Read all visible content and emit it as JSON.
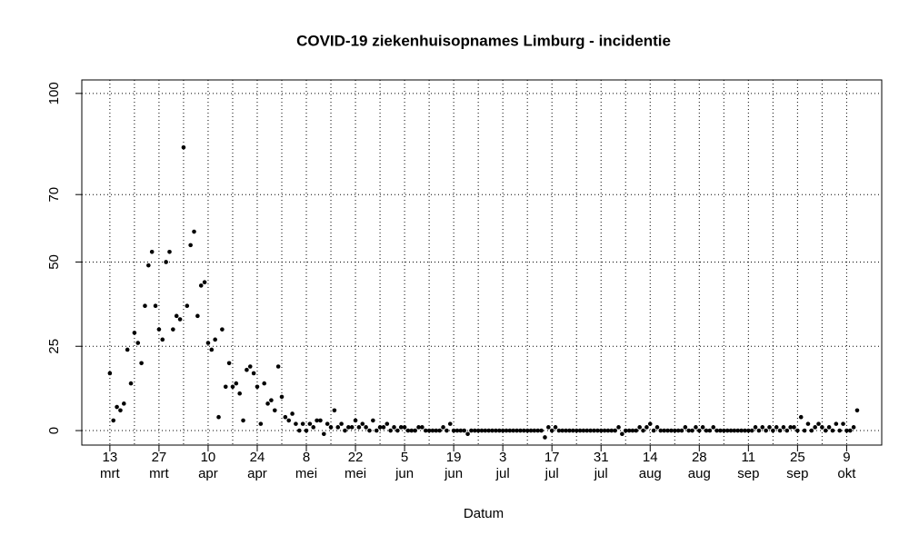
{
  "chart_data": {
    "type": "scatter",
    "title": "COVID-19 ziekenhuisopnames Limburg - incidentie",
    "xlabel": "Datum",
    "color": "#000000",
    "grid": true,
    "xlim": [
      -8,
      220
    ],
    "ylim": [
      -4.3,
      104
    ],
    "yticks": [
      0,
      25,
      50,
      70,
      100
    ],
    "xticks": [
      {
        "value": 0,
        "label": "13 mrt"
      },
      {
        "value": 14,
        "label": "27 mrt"
      },
      {
        "value": 28,
        "label": "10 apr"
      },
      {
        "value": 42,
        "label": "24 apr"
      },
      {
        "value": 56,
        "label": "8 mei"
      },
      {
        "value": 70,
        "label": "22 mei"
      },
      {
        "value": 84,
        "label": "5 jun"
      },
      {
        "value": 98,
        "label": "19 jun"
      },
      {
        "value": 112,
        "label": "3 jul"
      },
      {
        "value": 126,
        "label": "17 jul"
      },
      {
        "value": 140,
        "label": "31 jul"
      },
      {
        "value": 154,
        "label": "14 aug"
      },
      {
        "value": 168,
        "label": "28 aug"
      },
      {
        "value": 182,
        "label": "11 sep"
      },
      {
        "value": 196,
        "label": "25 sep"
      },
      {
        "value": 210,
        "label": "9 okt"
      }
    ],
    "x": [
      0,
      1,
      2,
      3,
      4,
      5,
      6,
      7,
      8,
      9,
      10,
      11,
      12,
      13,
      14,
      15,
      16,
      17,
      18,
      19,
      20,
      21,
      22,
      23,
      24,
      25,
      26,
      27,
      28,
      29,
      30,
      31,
      32,
      33,
      34,
      35,
      36,
      37,
      38,
      39,
      40,
      41,
      42,
      43,
      44,
      45,
      46,
      47,
      48,
      49,
      50,
      51,
      52,
      53,
      54,
      55,
      56,
      57,
      58,
      59,
      60,
      61,
      62,
      63,
      64,
      65,
      66,
      67,
      68,
      69,
      70,
      71,
      72,
      73,
      74,
      75,
      76,
      77,
      78,
      79,
      80,
      81,
      82,
      83,
      84,
      85,
      86,
      87,
      88,
      89,
      90,
      91,
      92,
      93,
      94,
      95,
      96,
      97,
      98,
      99,
      100,
      101,
      102,
      103,
      104,
      105,
      106,
      107,
      108,
      109,
      110,
      111,
      112,
      113,
      114,
      115,
      116,
      117,
      118,
      119,
      120,
      121,
      122,
      123,
      124,
      125,
      126,
      127,
      128,
      129,
      130,
      131,
      132,
      133,
      134,
      135,
      136,
      137,
      138,
      139,
      140,
      141,
      142,
      143,
      144,
      145,
      146,
      147,
      148,
      149,
      150,
      151,
      152,
      153,
      154,
      155,
      156,
      157,
      158,
      159,
      160,
      161,
      162,
      163,
      164,
      165,
      166,
      167,
      168,
      169,
      170,
      171,
      172,
      173,
      174,
      175,
      176,
      177,
      178,
      179,
      180,
      181,
      182,
      183,
      184,
      185,
      186,
      187,
      188,
      189,
      190,
      191,
      192,
      193,
      194,
      195,
      196,
      197,
      198,
      199,
      200,
      201,
      202,
      203,
      204,
      205,
      206,
      207,
      208,
      209,
      210,
      211,
      212,
      213
    ],
    "values": [
      17,
      3,
      7,
      6,
      8,
      24,
      14,
      29,
      26,
      20,
      37,
      49,
      53,
      37,
      30,
      27,
      50,
      53,
      30,
      34,
      33,
      84,
      37,
      55,
      59,
      34,
      43,
      44,
      26,
      24,
      27,
      4,
      30,
      13,
      20,
      13,
      14,
      11,
      3,
      18,
      19,
      17,
      13,
      2,
      14,
      8,
      9,
      6,
      19,
      10,
      4,
      3,
      5,
      2,
      0,
      2,
      0,
      2,
      1,
      3,
      3,
      -1,
      2,
      1,
      6,
      1,
      2,
      0,
      1,
      1,
      3,
      1,
      2,
      1,
      0,
      3,
      0,
      1,
      1,
      2,
      0,
      1,
      0,
      1,
      1,
      0,
      0,
      0,
      1,
      1,
      0,
      0,
      0,
      0,
      0,
      1,
      0,
      2,
      0,
      0,
      0,
      0,
      -1,
      0,
      0,
      0,
      0,
      0,
      0,
      0,
      0,
      0,
      0,
      0,
      0,
      0,
      0,
      0,
      0,
      0,
      0,
      0,
      0,
      0,
      -2,
      1,
      0,
      1,
      0,
      0,
      0,
      0,
      0,
      0,
      0,
      0,
      0,
      0,
      0,
      0,
      0,
      0,
      0,
      0,
      0,
      1,
      -1,
      0,
      0,
      0,
      0,
      1,
      0,
      1,
      2,
      0,
      1,
      0,
      0,
      0,
      0,
      0,
      0,
      0,
      1,
      0,
      0,
      1,
      0,
      1,
      0,
      0,
      1,
      0,
      0,
      0,
      0,
      0,
      0,
      0,
      0,
      0,
      0,
      0,
      1,
      0,
      1,
      0,
      1,
      0,
      1,
      0,
      1,
      0,
      1,
      1,
      0,
      4,
      0,
      2,
      0,
      1,
      2,
      1,
      0,
      1,
      0,
      2,
      0,
      2,
      0,
      0,
      1,
      6
    ]
  }
}
